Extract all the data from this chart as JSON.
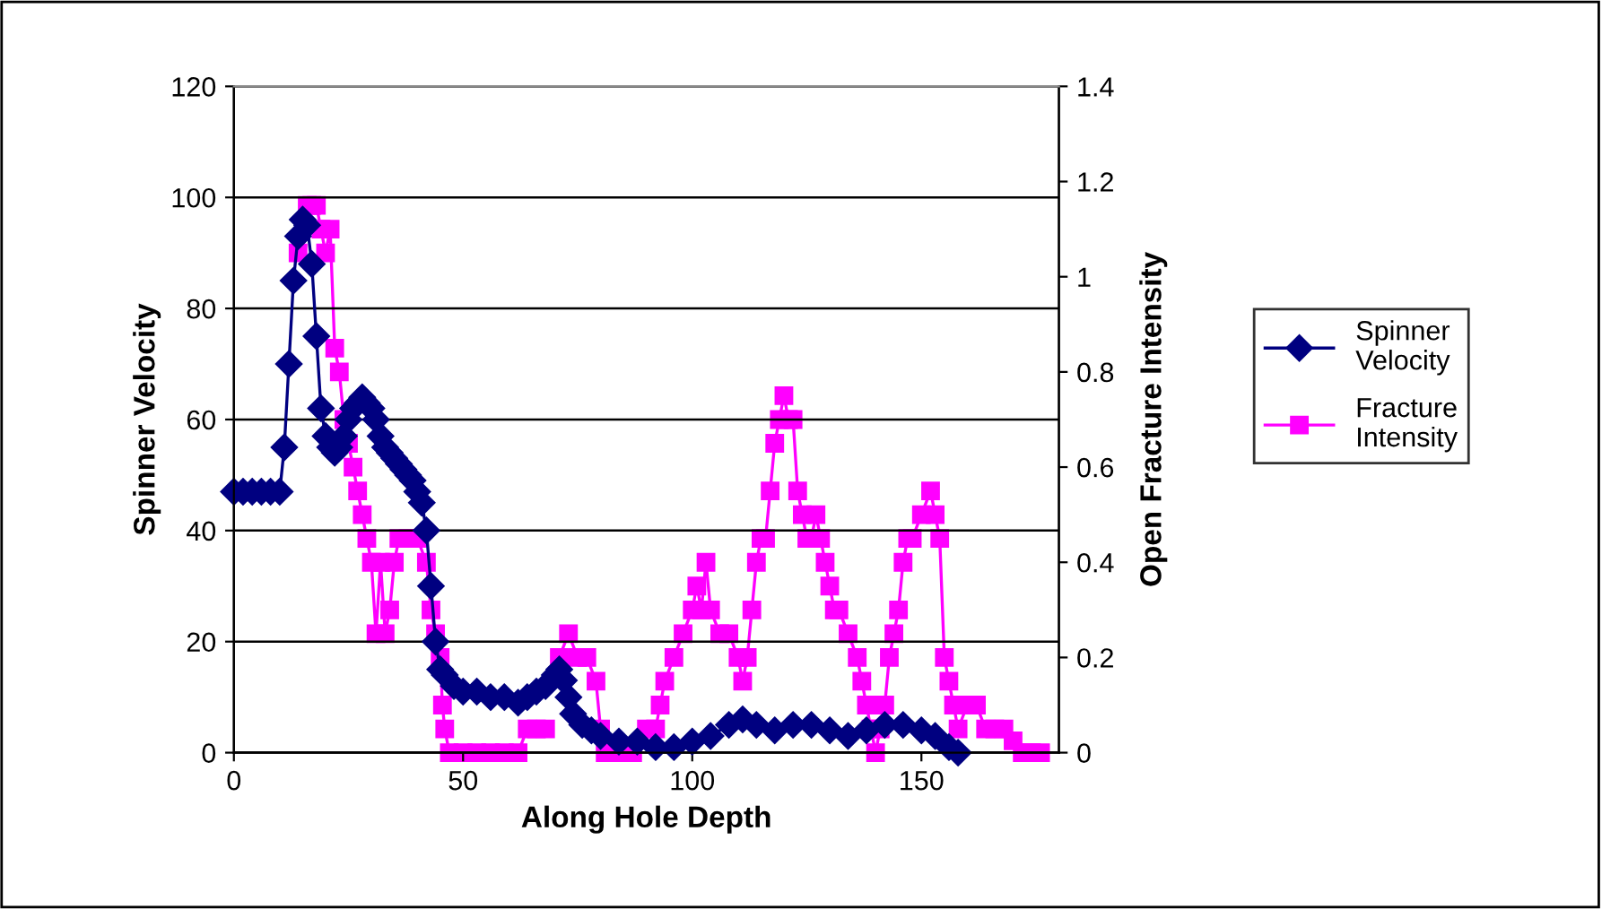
{
  "chart_data": {
    "type": "line",
    "xlabel": "Along Hole Depth",
    "ylabel": "Spinner Velocity",
    "y2label": "Open Fracture Intensity",
    "xlim": [
      0,
      180
    ],
    "xticks": [
      0,
      50,
      100,
      150
    ],
    "ylim": [
      0,
      120
    ],
    "yticks": [
      0,
      20,
      40,
      60,
      80,
      100,
      120
    ],
    "y2lim": [
      0,
      1.4
    ],
    "y2ticks": [
      0,
      0.2,
      0.4,
      0.6,
      0.8,
      1,
      1.2,
      1.4
    ],
    "grid": "y",
    "legend": "right",
    "series": [
      {
        "name": "Spinner Velocity",
        "color": "#000080",
        "marker": "diamond",
        "x": [
          0,
          2,
          4,
          6,
          8,
          10,
          11,
          12,
          13,
          14,
          15,
          16,
          17,
          18,
          19,
          20,
          21,
          22,
          23,
          24,
          25,
          26,
          27,
          28,
          29,
          30,
          31,
          32,
          33,
          34,
          35,
          36,
          37,
          38,
          39,
          40,
          41,
          42,
          43,
          44,
          45,
          46,
          48,
          50,
          53,
          56,
          59,
          62,
          64,
          66,
          68,
          70,
          71,
          72,
          73,
          74,
          76,
          78,
          80,
          84,
          88,
          92,
          96,
          100,
          104,
          108,
          111,
          114,
          118,
          122,
          126,
          130,
          134,
          138,
          142,
          146,
          150,
          153,
          156,
          158
        ],
        "values": [
          47,
          47,
          47,
          47,
          47,
          47,
          55,
          70,
          85,
          93,
          96,
          95,
          88,
          75,
          62,
          57,
          55,
          54,
          55,
          57,
          60,
          62,
          63,
          64,
          63,
          62,
          60,
          57,
          55,
          54,
          53,
          52,
          51,
          50,
          49,
          47,
          45,
          40,
          30,
          20,
          15,
          14,
          12,
          11,
          11,
          10,
          10,
          9,
          10,
          11,
          12,
          14,
          15,
          13,
          10,
          7,
          5,
          4,
          3,
          2,
          2,
          1,
          1,
          2,
          3,
          5,
          6,
          5,
          4,
          5,
          5,
          4,
          3,
          4,
          5,
          5,
          4,
          3,
          1,
          0
        ]
      },
      {
        "name": "Fracture Intensity",
        "color": "#ff00ff",
        "marker": "square",
        "axis": "y2",
        "x": [
          14,
          15,
          16,
          17,
          18,
          19,
          20,
          21,
          22,
          23,
          24,
          25,
          26,
          27,
          28,
          29,
          30,
          31,
          32,
          33,
          34,
          35,
          36,
          38,
          40,
          42,
          43,
          44,
          45,
          45.5,
          46,
          47,
          50,
          53,
          56,
          59,
          62,
          64,
          66,
          68,
          70,
          71,
          73,
          75,
          77,
          79,
          80,
          81,
          84,
          87,
          90,
          92,
          93,
          94,
          96,
          98,
          100,
          101,
          102,
          103,
          104,
          106,
          108,
          110,
          111,
          112,
          113,
          114,
          115,
          116,
          117,
          118,
          119,
          120,
          121,
          122,
          123,
          124,
          125,
          126,
          127,
          128,
          129,
          130,
          131,
          132,
          134,
          136,
          137,
          138,
          139,
          140,
          141,
          142,
          143,
          144,
          145,
          146,
          147,
          148,
          150,
          152,
          153,
          154,
          155,
          156,
          157,
          158,
          160,
          162,
          164,
          166,
          168,
          170,
          172,
          174,
          176
        ],
        "values": [
          1.05,
          null,
          1.15,
          1.15,
          1.15,
          1.1,
          1.05,
          1.1,
          0.85,
          0.8,
          0.7,
          0.65,
          0.6,
          0.55,
          0.5,
          0.45,
          0.4,
          0.25,
          0.4,
          0.25,
          0.3,
          0.4,
          0.45,
          0.45,
          0.45,
          0.4,
          0.3,
          0.25,
          0.2,
          0.1,
          0.05,
          0,
          0,
          0,
          0,
          0,
          0,
          0.05,
          0.05,
          0.05,
          null,
          0.2,
          0.25,
          0.2,
          0.2,
          0.15,
          0.05,
          0,
          0,
          0,
          0.05,
          0.05,
          0.1,
          0.15,
          0.2,
          0.25,
          0.3,
          0.35,
          0.3,
          0.4,
          0.3,
          0.25,
          0.25,
          0.2,
          0.15,
          0.2,
          0.3,
          0.4,
          0.45,
          0.45,
          0.55,
          0.65,
          0.7,
          0.75,
          0.7,
          0.7,
          0.55,
          0.5,
          0.45,
          0.45,
          0.5,
          0.45,
          0.4,
          0.35,
          0.3,
          0.3,
          0.25,
          0.2,
          0.15,
          0.1,
          0.05,
          0,
          0.05,
          0.1,
          0.2,
          0.25,
          0.3,
          0.4,
          0.45,
          0.45,
          0.5,
          0.55,
          0.5,
          0.45,
          0.2,
          0.15,
          0.1,
          0.05,
          0.1,
          0.1,
          0.05,
          0.05,
          0.05,
          0.025,
          0,
          0,
          0
        ]
      }
    ]
  }
}
